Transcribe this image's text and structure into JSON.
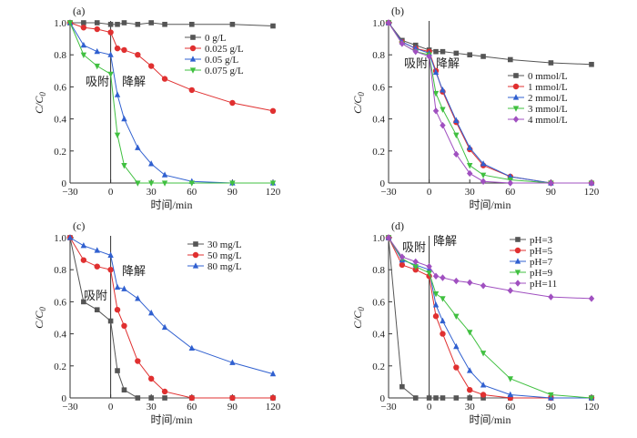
{
  "chart_data": [
    {
      "type": "line",
      "panel_label": "(a)",
      "xlabel": "时间/min",
      "ylabel": "C/C0",
      "xlim": [
        -30,
        120
      ],
      "ylim": [
        0,
        1.0
      ],
      "xticks": [
        -30,
        0,
        30,
        60,
        90,
        120
      ],
      "yticks": [
        0,
        0.2,
        0.4,
        0.6,
        0.8,
        1.0
      ],
      "annotations": [
        "吸附",
        "降解"
      ],
      "legend_position": "top-right",
      "series": [
        {
          "name": "0 g/L",
          "color": "#555555",
          "marker": "square",
          "x": [
            -30,
            -20,
            -10,
            0,
            5,
            10,
            20,
            30,
            40,
            60,
            90,
            120
          ],
          "y": [
            1.0,
            1.0,
            1.0,
            0.99,
            0.99,
            1.0,
            0.99,
            1.0,
            0.99,
            0.99,
            0.99,
            0.98
          ]
        },
        {
          "name": "0.025 g/L",
          "color": "#e03030",
          "marker": "circle",
          "x": [
            -30,
            -20,
            -10,
            0,
            5,
            10,
            20,
            30,
            40,
            60,
            90,
            120
          ],
          "y": [
            1.0,
            0.97,
            0.96,
            0.94,
            0.84,
            0.83,
            0.8,
            0.73,
            0.65,
            0.58,
            0.5,
            0.45
          ]
        },
        {
          "name": "0.05 g/L",
          "color": "#3060d0",
          "marker": "triangle",
          "x": [
            -30,
            -20,
            -10,
            0,
            5,
            10,
            20,
            30,
            40,
            60,
            90,
            120
          ],
          "y": [
            1.0,
            0.86,
            0.82,
            0.8,
            0.55,
            0.4,
            0.22,
            0.12,
            0.05,
            0.01,
            0.0,
            0.0
          ]
        },
        {
          "name": "0.075 g/L",
          "color": "#40c040",
          "marker": "triangle-down",
          "x": [
            -30,
            -20,
            -10,
            0,
            5,
            10,
            20,
            30,
            40,
            60,
            90,
            120
          ],
          "y": [
            1.0,
            0.8,
            0.73,
            0.68,
            0.3,
            0.11,
            0.0,
            0.0,
            0.0,
            0.0,
            0.0,
            0.0
          ]
        }
      ]
    },
    {
      "type": "line",
      "panel_label": "(b)",
      "xlabel": "时间/min",
      "ylabel": "C/C0",
      "xlim": [
        -30,
        120
      ],
      "ylim": [
        0,
        1.0
      ],
      "xticks": [
        -30,
        0,
        30,
        60,
        90,
        120
      ],
      "yticks": [
        0,
        0.2,
        0.4,
        0.6,
        0.8,
        1.0
      ],
      "annotations": [
        "吸附",
        "降解"
      ],
      "legend_position": "right",
      "series": [
        {
          "name": "0 mmol/L",
          "color": "#555555",
          "marker": "square",
          "x": [
            -30,
            -20,
            -10,
            0,
            5,
            10,
            20,
            30,
            40,
            60,
            90,
            120
          ],
          "y": [
            1.0,
            0.89,
            0.86,
            0.83,
            0.82,
            0.82,
            0.81,
            0.8,
            0.79,
            0.77,
            0.75,
            0.74
          ]
        },
        {
          "name": "1 mmol/L",
          "color": "#e03030",
          "marker": "circle",
          "x": [
            -30,
            -20,
            -10,
            0,
            5,
            10,
            20,
            30,
            40,
            60,
            90,
            120
          ],
          "y": [
            1.0,
            0.88,
            0.84,
            0.82,
            0.7,
            0.57,
            0.38,
            0.21,
            0.11,
            0.04,
            0.0,
            0.0
          ]
        },
        {
          "name": "2 mmol/L",
          "color": "#3060d0",
          "marker": "triangle",
          "x": [
            -30,
            -20,
            -10,
            0,
            5,
            10,
            20,
            30,
            40,
            60,
            90,
            120
          ],
          "y": [
            1.0,
            0.88,
            0.84,
            0.81,
            0.69,
            0.58,
            0.39,
            0.22,
            0.12,
            0.04,
            0.0,
            0.0
          ]
        },
        {
          "name": "3 mmol/L",
          "color": "#40c040",
          "marker": "triangle-down",
          "x": [
            -30,
            -20,
            -10,
            0,
            5,
            10,
            20,
            30,
            40,
            60,
            90,
            120
          ],
          "y": [
            1.0,
            0.87,
            0.82,
            0.8,
            0.56,
            0.46,
            0.3,
            0.11,
            0.05,
            0.02,
            0.0,
            0.0
          ]
        },
        {
          "name": "4 mmol/L",
          "color": "#a050c0",
          "marker": "diamond",
          "x": [
            -30,
            -20,
            -10,
            0,
            5,
            10,
            20,
            30,
            40,
            60,
            90,
            120
          ],
          "y": [
            1.0,
            0.87,
            0.82,
            0.79,
            0.45,
            0.36,
            0.18,
            0.06,
            0.01,
            0.0,
            0.0,
            0.0
          ]
        }
      ]
    },
    {
      "type": "line",
      "panel_label": "(c)",
      "xlabel": "时间/min",
      "ylabel": "C/C0",
      "xlim": [
        -30,
        120
      ],
      "ylim": [
        0,
        1.0
      ],
      "xticks": [
        -30,
        0,
        30,
        60,
        90,
        120
      ],
      "yticks": [
        0,
        0.2,
        0.4,
        0.6,
        0.8,
        1.0
      ],
      "annotations": [
        "吸附",
        "降解"
      ],
      "legend_position": "top-right",
      "series": [
        {
          "name": "30 mg/L",
          "color": "#555555",
          "marker": "square",
          "x": [
            -30,
            -20,
            -10,
            0,
            5,
            10,
            20,
            30,
            40,
            60,
            90,
            120
          ],
          "y": [
            1.0,
            0.6,
            0.55,
            0.48,
            0.17,
            0.05,
            0.0,
            0.0,
            0.0,
            0.0,
            0.0,
            0.0
          ]
        },
        {
          "name": "50 mg/L",
          "color": "#e03030",
          "marker": "circle",
          "x": [
            -30,
            -20,
            -10,
            0,
            5,
            10,
            20,
            30,
            40,
            60,
            90,
            120
          ],
          "y": [
            1.0,
            0.86,
            0.82,
            0.8,
            0.55,
            0.45,
            0.23,
            0.12,
            0.04,
            0.0,
            0.0,
            0.0
          ]
        },
        {
          "name": "80 mg/L",
          "color": "#3060d0",
          "marker": "triangle",
          "x": [
            -30,
            -20,
            -10,
            0,
            5,
            10,
            20,
            30,
            40,
            60,
            90,
            120
          ],
          "y": [
            1.0,
            0.95,
            0.92,
            0.89,
            0.69,
            0.68,
            0.62,
            0.53,
            0.44,
            0.31,
            0.22,
            0.15
          ]
        }
      ]
    },
    {
      "type": "line",
      "panel_label": "(d)",
      "xlabel": "时间/min",
      "ylabel": "C/C0",
      "xlim": [
        -30,
        120
      ],
      "ylim": [
        0,
        1.0
      ],
      "xticks": [
        -30,
        0,
        30,
        60,
        90,
        120
      ],
      "yticks": [
        0,
        0.2,
        0.4,
        0.6,
        0.8,
        1.0
      ],
      "annotations": [
        "吸附",
        "降解"
      ],
      "legend_position": "right",
      "series": [
        {
          "name": "pH=3",
          "color": "#555555",
          "marker": "square",
          "x": [
            -30,
            -20,
            -10,
            0,
            5,
            10,
            20,
            30,
            40,
            60,
            90,
            120
          ],
          "y": [
            1.0,
            0.07,
            0.0,
            0.0,
            0.0,
            0.0,
            0.0,
            0.0,
            0.0,
            0.0,
            0.0,
            0.0
          ]
        },
        {
          "name": "pH=5",
          "color": "#e03030",
          "marker": "circle",
          "x": [
            -30,
            -20,
            -10,
            0,
            5,
            10,
            20,
            30,
            40,
            60,
            90,
            120
          ],
          "y": [
            1.0,
            0.83,
            0.8,
            0.76,
            0.51,
            0.4,
            0.19,
            0.05,
            0.02,
            0.0,
            0.0,
            0.0
          ]
        },
        {
          "name": "pH=7",
          "color": "#3060d0",
          "marker": "triangle",
          "x": [
            -30,
            -20,
            -10,
            0,
            5,
            10,
            20,
            30,
            40,
            60,
            90,
            120
          ],
          "y": [
            1.0,
            0.86,
            0.83,
            0.8,
            0.58,
            0.48,
            0.32,
            0.17,
            0.08,
            0.02,
            0.0,
            0.0
          ]
        },
        {
          "name": "pH=9",
          "color": "#40c040",
          "marker": "triangle-down",
          "x": [
            -30,
            -20,
            -10,
            0,
            5,
            10,
            20,
            30,
            40,
            60,
            90,
            120
          ],
          "y": [
            1.0,
            0.87,
            0.82,
            0.78,
            0.65,
            0.62,
            0.51,
            0.41,
            0.28,
            0.12,
            0.02,
            0.0
          ]
        },
        {
          "name": "pH=11",
          "color": "#a050c0",
          "marker": "diamond",
          "x": [
            -30,
            -20,
            -10,
            0,
            5,
            10,
            20,
            30,
            40,
            60,
            90,
            120
          ],
          "y": [
            1.0,
            0.88,
            0.85,
            0.82,
            0.76,
            0.75,
            0.73,
            0.72,
            0.7,
            0.67,
            0.63,
            0.62
          ]
        }
      ]
    }
  ]
}
